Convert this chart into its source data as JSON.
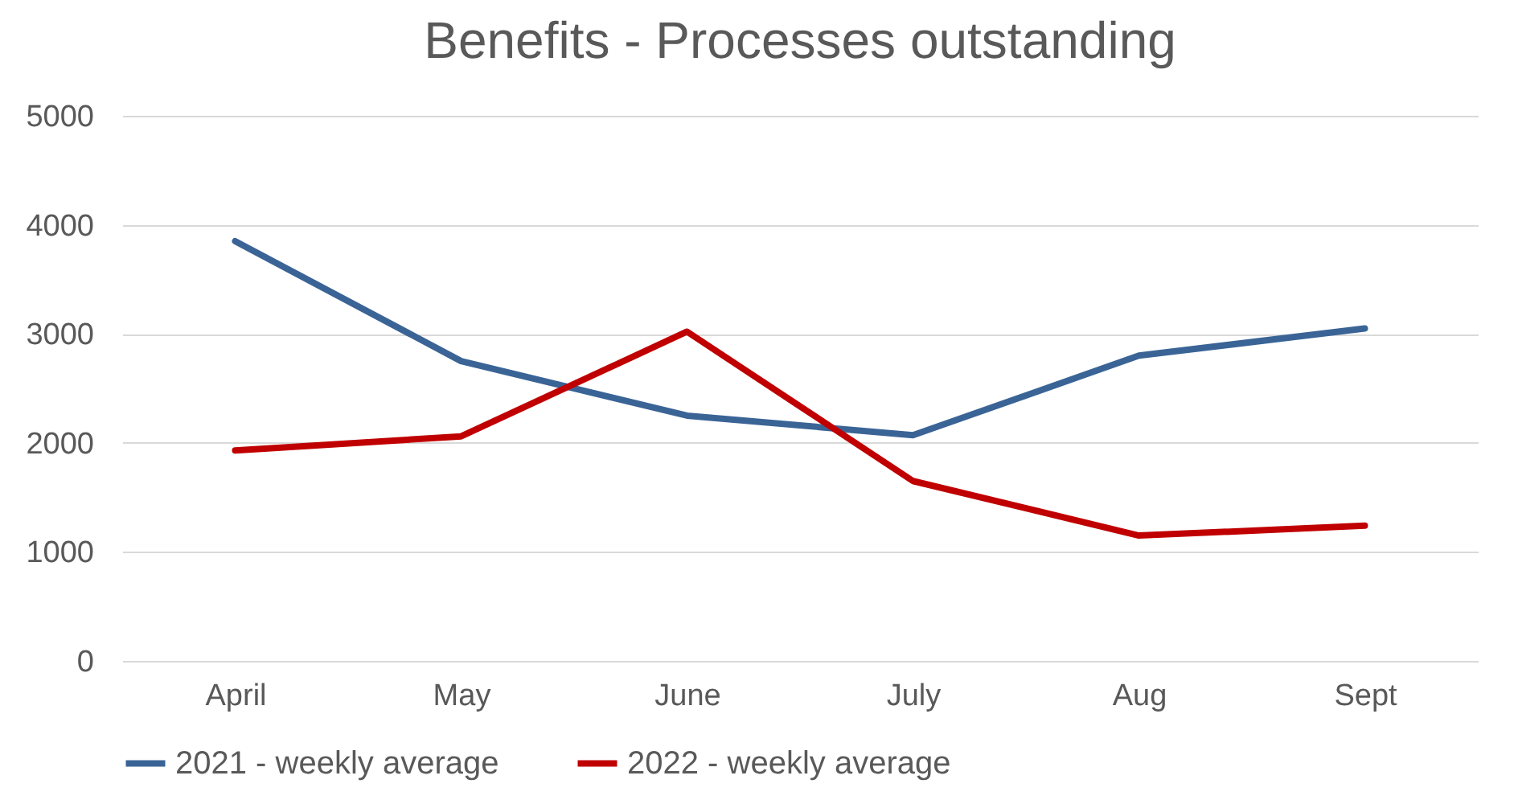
{
  "chart_data": {
    "type": "line",
    "title": "Benefits - Processes outstanding",
    "categories": [
      "April",
      "May",
      "June",
      "July",
      "Aug",
      "Sept"
    ],
    "series": [
      {
        "name": "2021 - weekly average",
        "color": "#3a6496",
        "values": [
          3850,
          2750,
          2250,
          2070,
          2800,
          3050
        ]
      },
      {
        "name": "2022 - weekly average",
        "color": "#c00000",
        "values": [
          1930,
          2060,
          3020,
          1650,
          1150,
          1240
        ]
      }
    ],
    "ylim": [
      0,
      5000
    ],
    "yticks": [
      0,
      1000,
      2000,
      3000,
      4000,
      5000
    ],
    "grid": "y",
    "legend": "bottom",
    "marker": "none",
    "line_style": "solid"
  }
}
